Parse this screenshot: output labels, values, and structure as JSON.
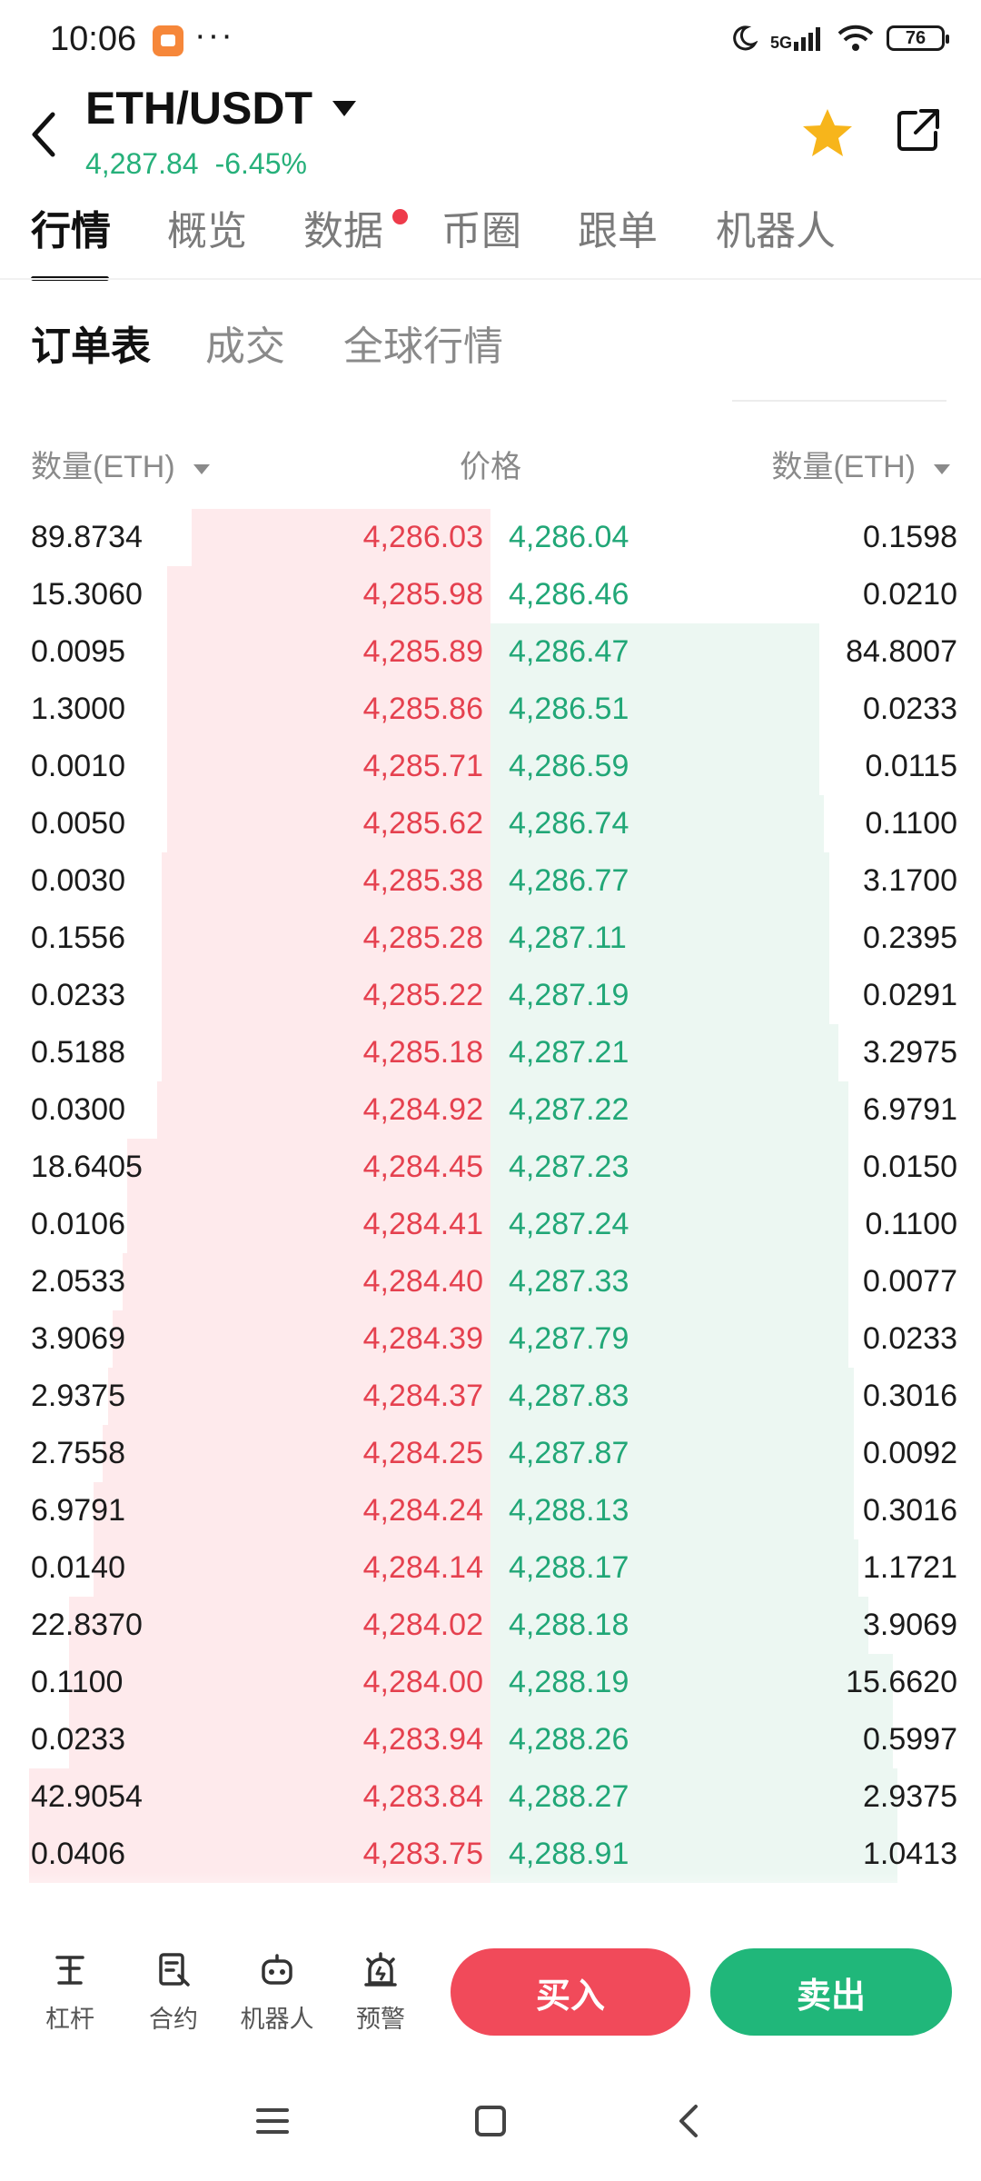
{
  "status_bar": {
    "time": "10:06",
    "more": "···",
    "network": "5G",
    "battery": "76"
  },
  "header": {
    "pair": "ETH/USDT",
    "last_price": "4,287.84",
    "change": "-6.45%",
    "icons": [
      "back-icon",
      "star-icon",
      "share-icon"
    ]
  },
  "tabs": [
    {
      "label": "行情",
      "active": true
    },
    {
      "label": "概览"
    },
    {
      "label": "数据",
      "badge": true
    },
    {
      "label": "币圈"
    },
    {
      "label": "跟单"
    },
    {
      "label": "机器人"
    }
  ],
  "subtabs": [
    {
      "label": "订单表",
      "active": true
    },
    {
      "label": "成交"
    },
    {
      "label": "全球行情"
    }
  ],
  "columns": {
    "bid_qty": "数量(ETH)",
    "price": "价格",
    "ask_qty": "数量(ETH)"
  },
  "order_book": [
    {
      "bid_qty": "89.8734",
      "bid_price": "4,286.03",
      "ask_price": "4,286.04",
      "ask_qty": "0.1598",
      "bid_depth": 0.61,
      "ask_depth": 0.0
    },
    {
      "bid_qty": "15.3060",
      "bid_price": "4,285.98",
      "ask_price": "4,286.46",
      "ask_qty": "0.0210",
      "bid_depth": 0.66,
      "ask_depth": 0.0
    },
    {
      "bid_qty": "0.0095",
      "bid_price": "4,285.89",
      "ask_price": "4,286.47",
      "ask_qty": "84.8007",
      "bid_depth": 0.66,
      "ask_depth": 0.67
    },
    {
      "bid_qty": "1.3000",
      "bid_price": "4,285.86",
      "ask_price": "4,286.51",
      "ask_qty": "0.0233",
      "bid_depth": 0.66,
      "ask_depth": 0.67
    },
    {
      "bid_qty": "0.0010",
      "bid_price": "4,285.71",
      "ask_price": "4,286.59",
      "ask_qty": "0.0115",
      "bid_depth": 0.66,
      "ask_depth": 0.67
    },
    {
      "bid_qty": "0.0050",
      "bid_price": "4,285.62",
      "ask_price": "4,286.74",
      "ask_qty": "0.1100",
      "bid_depth": 0.66,
      "ask_depth": 0.68
    },
    {
      "bid_qty": "0.0030",
      "bid_price": "4,285.38",
      "ask_price": "4,286.77",
      "ask_qty": "3.1700",
      "bid_depth": 0.67,
      "ask_depth": 0.69
    },
    {
      "bid_qty": "0.1556",
      "bid_price": "4,285.28",
      "ask_price": "4,287.11",
      "ask_qty": "0.2395",
      "bid_depth": 0.67,
      "ask_depth": 0.69
    },
    {
      "bid_qty": "0.0233",
      "bid_price": "4,285.22",
      "ask_price": "4,287.19",
      "ask_qty": "0.0291",
      "bid_depth": 0.67,
      "ask_depth": 0.69
    },
    {
      "bid_qty": "0.5188",
      "bid_price": "4,285.18",
      "ask_price": "4,287.21",
      "ask_qty": "3.2975",
      "bid_depth": 0.67,
      "ask_depth": 0.71
    },
    {
      "bid_qty": "0.0300",
      "bid_price": "4,284.92",
      "ask_price": "4,287.22",
      "ask_qty": "6.9791",
      "bid_depth": 0.68,
      "ask_depth": 0.73
    },
    {
      "bid_qty": "18.6405",
      "bid_price": "4,284.45",
      "ask_price": "4,287.23",
      "ask_qty": "0.0150",
      "bid_depth": 0.74,
      "ask_depth": 0.73
    },
    {
      "bid_qty": "0.0106",
      "bid_price": "4,284.41",
      "ask_price": "4,287.24",
      "ask_qty": "0.1100",
      "bid_depth": 0.74,
      "ask_depth": 0.73
    },
    {
      "bid_qty": "2.0533",
      "bid_price": "4,284.40",
      "ask_price": "4,287.33",
      "ask_qty": "0.0077",
      "bid_depth": 0.75,
      "ask_depth": 0.73
    },
    {
      "bid_qty": "3.9069",
      "bid_price": "4,284.39",
      "ask_price": "4,287.79",
      "ask_qty": "0.0233",
      "bid_depth": 0.77,
      "ask_depth": 0.73
    },
    {
      "bid_qty": "2.9375",
      "bid_price": "4,284.37",
      "ask_price": "4,287.83",
      "ask_qty": "0.3016",
      "bid_depth": 0.78,
      "ask_depth": 0.74
    },
    {
      "bid_qty": "2.7558",
      "bid_price": "4,284.25",
      "ask_price": "4,287.87",
      "ask_qty": "0.0092",
      "bid_depth": 0.79,
      "ask_depth": 0.74
    },
    {
      "bid_qty": "6.9791",
      "bid_price": "4,284.24",
      "ask_price": "4,288.13",
      "ask_qty": "0.3016",
      "bid_depth": 0.81,
      "ask_depth": 0.74
    },
    {
      "bid_qty": "0.0140",
      "bid_price": "4,284.14",
      "ask_price": "4,288.17",
      "ask_qty": "1.1721",
      "bid_depth": 0.81,
      "ask_depth": 0.75
    },
    {
      "bid_qty": "22.8370",
      "bid_price": "4,284.02",
      "ask_price": "4,288.18",
      "ask_qty": "3.9069",
      "bid_depth": 0.86,
      "ask_depth": 0.77
    },
    {
      "bid_qty": "0.1100",
      "bid_price": "4,284.00",
      "ask_price": "4,288.19",
      "ask_qty": "15.6620",
      "bid_depth": 0.86,
      "ask_depth": 0.82
    },
    {
      "bid_qty": "0.0233",
      "bid_price": "4,283.94",
      "ask_price": "4,288.26",
      "ask_qty": "0.5997",
      "bid_depth": 0.86,
      "ask_depth": 0.82
    },
    {
      "bid_qty": "42.9054",
      "bid_price": "4,283.84",
      "ask_price": "4,288.27",
      "ask_qty": "2.9375",
      "bid_depth": 0.94,
      "ask_depth": 0.83
    },
    {
      "bid_qty": "0.0406",
      "bid_price": "4,283.75",
      "ask_price": "4,288.91",
      "ask_qty": "1.0413",
      "bid_depth": 0.94,
      "ask_depth": 0.83
    }
  ],
  "toolbar": {
    "tools": [
      {
        "label": "杠杆",
        "icon": "leverage-icon"
      },
      {
        "label": "合约",
        "icon": "contract-icon"
      },
      {
        "label": "机器人",
        "icon": "robot-icon"
      },
      {
        "label": "预警",
        "icon": "alarm-icon"
      }
    ],
    "buy_label": "买入",
    "sell_label": "卖出"
  },
  "colors": {
    "up": "#21a777",
    "down": "#e5414f",
    "buy_button": "#f14a5a",
    "sell_button": "#20b77a"
  }
}
